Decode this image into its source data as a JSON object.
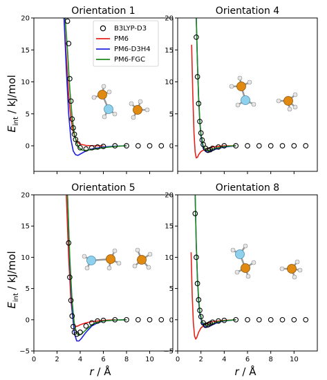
{
  "chart_data": {
    "type": "line",
    "ylabel_main": "E",
    "ylabel_sub": "int",
    "ylabel_unit": " / kJ/mol",
    "xlabel_main": "r",
    "xlabel_unit": " / Å",
    "xlim": [
      0,
      12
    ],
    "xticks": [
      0,
      2,
      4,
      6,
      8,
      10
    ],
    "legend": {
      "placement": "upper-right-of-first-panel",
      "entries": [
        {
          "label": "B3LYP-D3",
          "marker": "circle-open",
          "color": "#000000"
        },
        {
          "label": "PM6",
          "color": "#e8201a"
        },
        {
          "label": "PM6-D3H4",
          "color": "#1f1fe0"
        },
        {
          "label": "PM6-FGC",
          "color": "#1e8a1e"
        }
      ]
    },
    "panels": [
      {
        "title": "Orientation 1",
        "ylim": [
          -4,
          20
        ],
        "yticks": [
          0,
          5,
          10,
          15,
          20
        ],
        "b3lyp": [
          [
            2.9,
            19.5
          ],
          [
            3.0,
            16.0
          ],
          [
            3.1,
            10.5
          ],
          [
            3.2,
            7.0
          ],
          [
            3.3,
            4.2
          ],
          [
            3.4,
            2.8
          ],
          [
            3.5,
            1.8
          ],
          [
            3.6,
            1.0
          ],
          [
            3.8,
            0.3
          ],
          [
            4.0,
            -0.3
          ],
          [
            4.5,
            -0.5
          ],
          [
            5.0,
            -0.3
          ],
          [
            5.5,
            -0.2
          ],
          [
            6.0,
            -0.1
          ],
          [
            7.0,
            0.0
          ],
          [
            8.0,
            0.0
          ],
          [
            9.0,
            0.0
          ],
          [
            10.0,
            0.0
          ],
          [
            11.0,
            0.0
          ]
        ],
        "series": [
          {
            "key": "pm6",
            "points": [
              [
                2.6,
                20
              ],
              [
                2.8,
                14
              ],
              [
                3.0,
                8
              ],
              [
                3.2,
                4.2
              ],
              [
                3.4,
                2.2
              ],
              [
                3.6,
                1.1
              ],
              [
                3.8,
                0.5
              ],
              [
                4.0,
                0.25
              ],
              [
                4.5,
                0.05
              ],
              [
                5.0,
                0.0
              ],
              [
                6.0,
                0.0
              ]
            ]
          },
          {
            "key": "d3h4",
            "points": [
              [
                2.6,
                20
              ],
              [
                2.8,
                12
              ],
              [
                3.0,
                5
              ],
              [
                3.2,
                1.0
              ],
              [
                3.4,
                -0.8
              ],
              [
                3.6,
                -1.4
              ],
              [
                3.8,
                -1.5
              ],
              [
                4.0,
                -1.3
              ],
              [
                4.5,
                -0.8
              ],
              [
                5.0,
                -0.5
              ],
              [
                6.0,
                -0.2
              ],
              [
                7.0,
                -0.05
              ],
              [
                8.0,
                0.0
              ]
            ]
          },
          {
            "key": "fgc",
            "points": [
              [
                2.7,
                20
              ],
              [
                2.9,
                15
              ],
              [
                3.1,
                9
              ],
              [
                3.3,
                4.5
              ],
              [
                3.5,
                1.8
              ],
              [
                3.7,
                0.4
              ],
              [
                3.9,
                -0.3
              ],
              [
                4.2,
                -0.7
              ],
              [
                4.6,
                -0.7
              ],
              [
                5.0,
                -0.6
              ],
              [
                6.0,
                -0.3
              ],
              [
                7.0,
                -0.1
              ],
              [
                8.0,
                0.0
              ]
            ]
          }
        ]
      },
      {
        "title": "Orientation 4",
        "ylim": [
          -4,
          20
        ],
        "yticks": [
          0,
          5,
          10,
          15,
          20
        ],
        "b3lyp": [
          [
            1.6,
            17.0
          ],
          [
            1.7,
            10.8
          ],
          [
            1.8,
            6.6
          ],
          [
            1.9,
            3.8
          ],
          [
            2.0,
            2.0
          ],
          [
            2.1,
            0.9
          ],
          [
            2.2,
            0.2
          ],
          [
            2.4,
            -0.4
          ],
          [
            2.6,
            -0.7
          ],
          [
            2.8,
            -0.6
          ],
          [
            3.0,
            -0.4
          ],
          [
            3.5,
            -0.2
          ],
          [
            4.0,
            0.0
          ],
          [
            5.0,
            0.0
          ],
          [
            6.0,
            0.0
          ],
          [
            7.0,
            0.0
          ],
          [
            8.0,
            0.0
          ],
          [
            9.0,
            0.0
          ],
          [
            10.0,
            0.0
          ],
          [
            11.0,
            0.0
          ]
        ],
        "series": [
          {
            "key": "pm6",
            "points": [
              [
                1.2,
                15.8
              ],
              [
                1.3,
                8
              ],
              [
                1.4,
                2
              ],
              [
                1.5,
                -1.0
              ],
              [
                1.6,
                -1.9
              ],
              [
                1.7,
                -1.8
              ],
              [
                1.8,
                -1.4
              ],
              [
                2.0,
                -0.9
              ],
              [
                2.4,
                -0.5
              ],
              [
                3.0,
                -0.2
              ],
              [
                4.0,
                0.0
              ],
              [
                5.0,
                0.0
              ]
            ]
          },
          {
            "key": "d3h4",
            "points": [
              [
                1.6,
                20
              ],
              [
                1.7,
                13
              ],
              [
                1.8,
                7.5
              ],
              [
                1.9,
                3.8
              ],
              [
                2.0,
                1.5
              ],
              [
                2.2,
                -0.4
              ],
              [
                2.4,
                -0.9
              ],
              [
                2.6,
                -1.0
              ],
              [
                2.8,
                -0.9
              ],
              [
                3.0,
                -0.7
              ],
              [
                3.5,
                -0.4
              ],
              [
                4.0,
                -0.2
              ],
              [
                5.0,
                0.0
              ]
            ]
          },
          {
            "key": "fgc",
            "points": [
              [
                1.6,
                20
              ],
              [
                1.7,
                13
              ],
              [
                1.8,
                7.5
              ],
              [
                1.9,
                4.0
              ],
              [
                2.0,
                1.8
              ],
              [
                2.2,
                0.0
              ],
              [
                2.4,
                -0.6
              ],
              [
                2.6,
                -0.8
              ],
              [
                2.8,
                -0.7
              ],
              [
                3.0,
                -0.5
              ],
              [
                3.5,
                -0.3
              ],
              [
                4.0,
                -0.1
              ],
              [
                5.0,
                0.0
              ]
            ]
          }
        ]
      },
      {
        "title": "Orientation 5",
        "ylim": [
          -5,
          20
        ],
        "yticks": [
          -5,
          0,
          5,
          10,
          15,
          20
        ],
        "b3lyp": [
          [
            3.0,
            12.3
          ],
          [
            3.1,
            6.8
          ],
          [
            3.2,
            3.1
          ],
          [
            3.3,
            0.6
          ],
          [
            3.4,
            -1.1
          ],
          [
            3.5,
            -2.0
          ],
          [
            3.7,
            -2.3
          ],
          [
            4.0,
            -2.0
          ],
          [
            4.5,
            -1.0
          ],
          [
            5.0,
            -0.5
          ],
          [
            5.5,
            -0.2
          ],
          [
            6.0,
            -0.1
          ],
          [
            7.0,
            0.0
          ],
          [
            8.0,
            0.0
          ],
          [
            9.0,
            0.0
          ],
          [
            10.0,
            0.0
          ],
          [
            11.0,
            0.0
          ]
        ],
        "series": [
          {
            "key": "pm6",
            "points": [
              [
                2.8,
                20
              ],
              [
                3.0,
                10
              ],
              [
                3.2,
                3
              ],
              [
                3.4,
                -0.2
              ],
              [
                3.6,
                -1.1
              ],
              [
                3.8,
                -1.0
              ],
              [
                4.0,
                -0.8
              ],
              [
                4.5,
                -0.5
              ],
              [
                5.0,
                -0.3
              ],
              [
                6.0,
                -0.1
              ],
              [
                7.0,
                0.0
              ]
            ]
          },
          {
            "key": "d3h4",
            "points": [
              [
                2.9,
                20
              ],
              [
                3.1,
                9
              ],
              [
                3.3,
                1.5
              ],
              [
                3.5,
                -2.2
              ],
              [
                3.7,
                -3.4
              ],
              [
                3.9,
                -3.4
              ],
              [
                4.1,
                -3.0
              ],
              [
                4.5,
                -2.0
              ],
              [
                5.0,
                -1.0
              ],
              [
                5.5,
                -0.5
              ],
              [
                6.0,
                -0.2
              ],
              [
                7.0,
                -0.05
              ],
              [
                8.0,
                0.0
              ]
            ]
          },
          {
            "key": "fgc",
            "points": [
              [
                2.9,
                20
              ],
              [
                3.1,
                10
              ],
              [
                3.3,
                3
              ],
              [
                3.5,
                -0.8
              ],
              [
                3.7,
                -2.2
              ],
              [
                3.9,
                -2.5
              ],
              [
                4.1,
                -2.3
              ],
              [
                4.5,
                -1.6
              ],
              [
                5.0,
                -0.8
              ],
              [
                5.5,
                -0.4
              ],
              [
                6.0,
                -0.2
              ],
              [
                7.0,
                -0.05
              ],
              [
                8.0,
                0.0
              ]
            ]
          }
        ]
      },
      {
        "title": "Orientation 8",
        "ylim": [
          -5,
          20
        ],
        "yticks": [
          -5,
          0,
          5,
          10,
          15,
          20
        ],
        "b3lyp": [
          [
            1.5,
            17.0
          ],
          [
            1.6,
            10.0
          ],
          [
            1.7,
            5.8
          ],
          [
            1.8,
            3.2
          ],
          [
            1.9,
            1.5
          ],
          [
            2.0,
            0.5
          ],
          [
            2.2,
            -0.5
          ],
          [
            2.4,
            -0.9
          ],
          [
            2.6,
            -0.8
          ],
          [
            2.8,
            -0.6
          ],
          [
            3.0,
            -0.4
          ],
          [
            3.5,
            -0.2
          ],
          [
            4.0,
            -0.1
          ],
          [
            5.0,
            0.0
          ],
          [
            6.0,
            0.0
          ],
          [
            7.0,
            0.0
          ],
          [
            8.0,
            0.0
          ],
          [
            9.0,
            0.0
          ],
          [
            10.0,
            0.0
          ],
          [
            11.0,
            0.0
          ]
        ],
        "series": [
          {
            "key": "pm6",
            "points": [
              [
                1.15,
                10.8
              ],
              [
                1.25,
                4
              ],
              [
                1.35,
                -0.5
              ],
              [
                1.45,
                -2.6
              ],
              [
                1.55,
                -3.1
              ],
              [
                1.65,
                -2.8
              ],
              [
                1.8,
                -2.0
              ],
              [
                2.0,
                -1.3
              ],
              [
                2.4,
                -0.7
              ],
              [
                3.0,
                -0.3
              ],
              [
                4.0,
                -0.1
              ],
              [
                5.0,
                0.0
              ]
            ]
          },
          {
            "key": "d3h4",
            "points": [
              [
                1.5,
                20
              ],
              [
                1.6,
                12
              ],
              [
                1.7,
                6.5
              ],
              [
                1.8,
                3.0
              ],
              [
                1.9,
                1.0
              ],
              [
                2.1,
                -0.6
              ],
              [
                2.3,
                -1.1
              ],
              [
                2.5,
                -1.2
              ],
              [
                2.7,
                -1.1
              ],
              [
                3.0,
                -0.8
              ],
              [
                3.5,
                -0.4
              ],
              [
                4.0,
                -0.2
              ],
              [
                5.0,
                0.0
              ]
            ]
          },
          {
            "key": "fgc",
            "points": [
              [
                1.5,
                20
              ],
              [
                1.6,
                12
              ],
              [
                1.7,
                6.8
              ],
              [
                1.8,
                3.4
              ],
              [
                1.9,
                1.3
              ],
              [
                2.1,
                -0.3
              ],
              [
                2.3,
                -0.8
              ],
              [
                2.5,
                -0.9
              ],
              [
                2.7,
                -0.8
              ],
              [
                3.0,
                -0.6
              ],
              [
                3.5,
                -0.3
              ],
              [
                4.0,
                -0.15
              ],
              [
                5.0,
                0.0
              ]
            ]
          }
        ]
      }
    ]
  },
  "colors": {
    "pm6": "#e8201a",
    "d3h4": "#1f1fe0",
    "fgc": "#1e8a1e",
    "carbon": "#e08a12",
    "nitrogen": "#8fd0ec",
    "hydrogen": "#e6e6e6"
  }
}
